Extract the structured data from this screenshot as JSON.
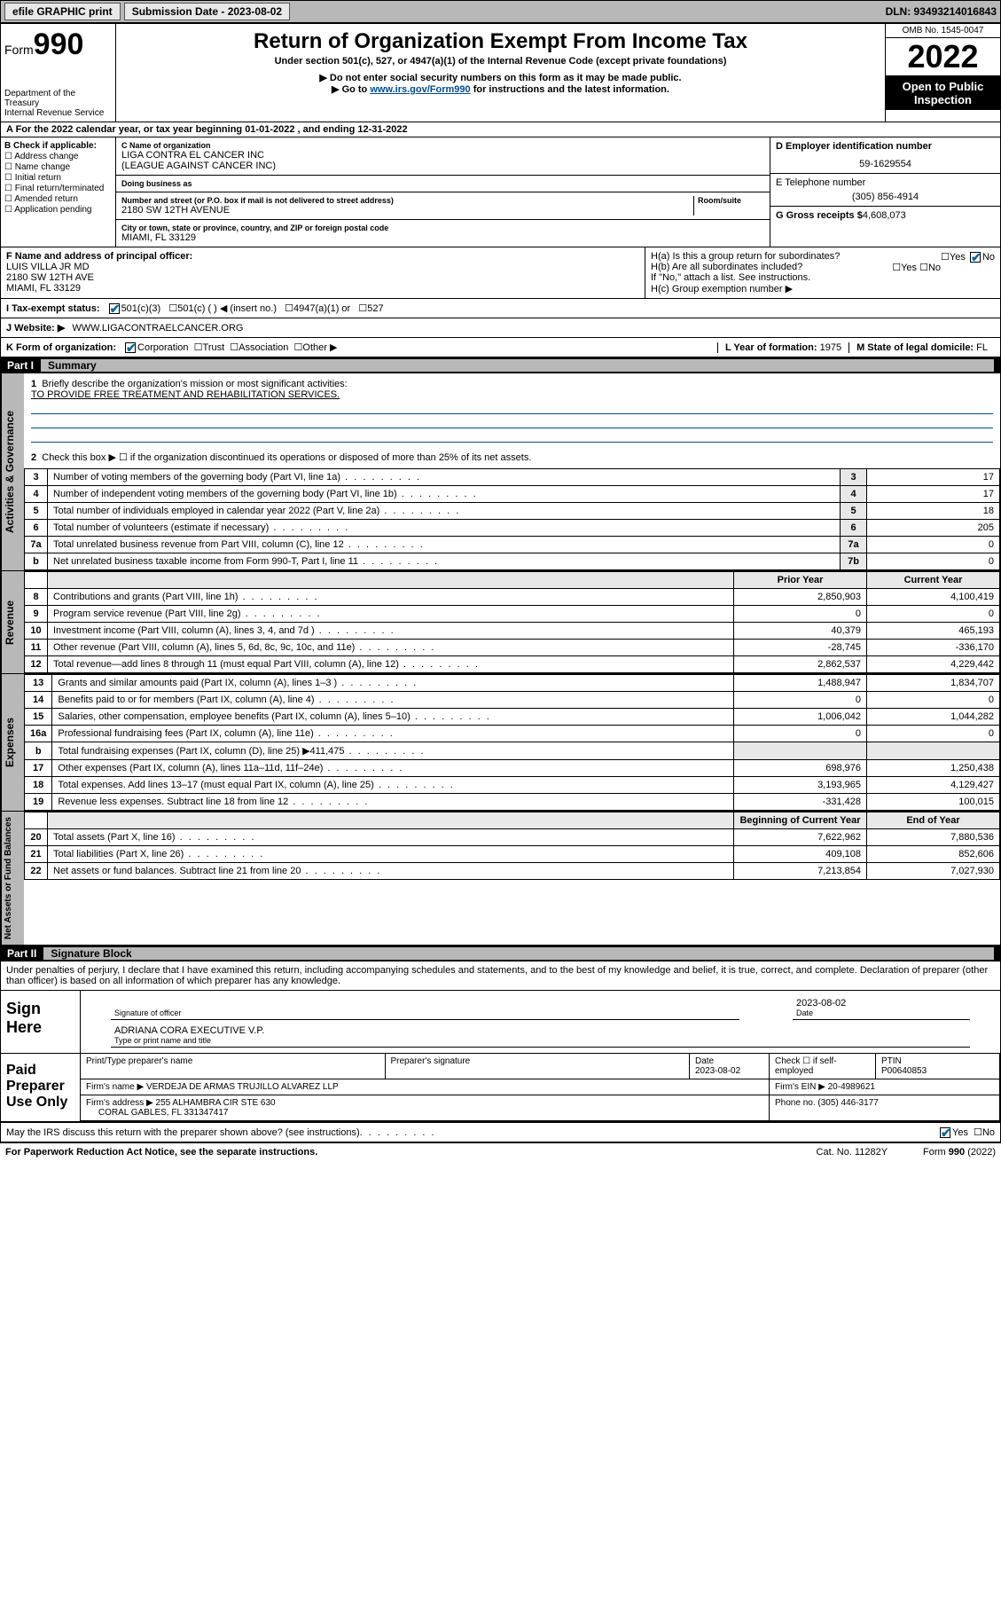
{
  "topbar": {
    "efile": "efile GRAPHIC print",
    "submission_label": "Submission Date - 2023-08-02",
    "dln_label": "DLN: 93493214016843"
  },
  "header": {
    "form_word": "Form",
    "form_num": "990",
    "dept": "Department of the Treasury",
    "irs": "Internal Revenue Service",
    "title": "Return of Organization Exempt From Income Tax",
    "subtitle": "Under section 501(c), 527, or 4947(a)(1) of the Internal Revenue Code (except private foundations)",
    "note1": "▶ Do not enter social security numbers on this form as it may be made public.",
    "note2_pre": "▶ Go to ",
    "note2_link": "www.irs.gov/Form990",
    "note2_post": " for instructions and the latest information.",
    "omb": "OMB No. 1545-0047",
    "year": "2022",
    "open": "Open to Public Inspection"
  },
  "rowA": "A For the 2022 calendar year, or tax year beginning 01-01-2022   , and ending 12-31-2022",
  "colB": {
    "title": "B Check if applicable:",
    "opts": [
      "Address change",
      "Name change",
      "Initial return",
      "Final return/terminated",
      "Amended return",
      "Application pending"
    ]
  },
  "colC": {
    "name_label": "C Name of organization",
    "name1": "LIGA CONTRA EL CANCER INC",
    "name2": "(LEAGUE AGAINST CANCER INC)",
    "dba_label": "Doing business as",
    "addr_label": "Number and street (or P.O. box if mail is not delivered to street address)",
    "room_label": "Room/suite",
    "addr": "2180 SW 12TH AVENUE",
    "city_label": "City or town, state or province, country, and ZIP or foreign postal code",
    "city": "MIAMI, FL  33129"
  },
  "colD": {
    "ein_label": "D Employer identification number",
    "ein": "59-1629554",
    "phone_label": "E Telephone number",
    "phone": "(305) 856-4914",
    "gross_label": "G Gross receipts $",
    "gross": "4,608,073"
  },
  "rowF": {
    "label": "F Name and address of principal officer:",
    "name": "LUIS VILLA JR MD",
    "addr1": "2180 SW 12TH AVE",
    "addr2": "MIAMI, FL  33129"
  },
  "rowH": {
    "ha": "H(a)  Is this a group return for subordinates?",
    "hb": "H(b)  Are all subordinates included?",
    "hb_note": "If \"No,\" attach a list. See instructions.",
    "hc": "H(c)  Group exemption number ▶",
    "yes": "Yes",
    "no": "No"
  },
  "rowI": {
    "label": "I    Tax-exempt status:",
    "o1": "501(c)(3)",
    "o2": "501(c) (  ) ◀ (insert no.)",
    "o3": "4947(a)(1) or",
    "o4": "527"
  },
  "rowJ": {
    "label": "J    Website: ▶",
    "val": "WWW.LIGACONTRAELCANCER.ORG"
  },
  "rowK": {
    "label": "K Form of organization:",
    "o1": "Corporation",
    "o2": "Trust",
    "o3": "Association",
    "o4": "Other ▶",
    "l_label": "L Year of formation: ",
    "l_val": "1975",
    "m_label": "M State of legal domicile: ",
    "m_val": "FL"
  },
  "part1": {
    "label": "Part I",
    "title": "Summary"
  },
  "governance": {
    "tab": "Activities & Governance",
    "line1_label": "Briefly describe the organization's mission or most significant activities:",
    "line1_val": "TO PROVIDE FREE TREATMENT AND REHABILITATION SERVICES.",
    "line2": "Check this box ▶ ☐  if the organization discontinued its operations or disposed of more than 25% of its net assets.",
    "rows": [
      {
        "n": "3",
        "desc": "Number of voting members of the governing body (Part VI, line 1a)",
        "box": "3",
        "val": "17"
      },
      {
        "n": "4",
        "desc": "Number of independent voting members of the governing body (Part VI, line 1b)",
        "box": "4",
        "val": "17"
      },
      {
        "n": "5",
        "desc": "Total number of individuals employed in calendar year 2022 (Part V, line 2a)",
        "box": "5",
        "val": "18"
      },
      {
        "n": "6",
        "desc": "Total number of volunteers (estimate if necessary)",
        "box": "6",
        "val": "205"
      },
      {
        "n": "7a",
        "desc": "Total unrelated business revenue from Part VIII, column (C), line 12",
        "box": "7a",
        "val": "0"
      },
      {
        "n": "b",
        "desc": "Net unrelated business taxable income from Form 990-T, Part I, line 11",
        "box": "7b",
        "val": "0"
      }
    ]
  },
  "revenue": {
    "tab": "Revenue",
    "hdr_prior": "Prior Year",
    "hdr_curr": "Current Year",
    "rows": [
      {
        "n": "8",
        "desc": "Contributions and grants (Part VIII, line 1h)",
        "p": "2,850,903",
        "c": "4,100,419"
      },
      {
        "n": "9",
        "desc": "Program service revenue (Part VIII, line 2g)",
        "p": "0",
        "c": "0"
      },
      {
        "n": "10",
        "desc": "Investment income (Part VIII, column (A), lines 3, 4, and 7d )",
        "p": "40,379",
        "c": "465,193"
      },
      {
        "n": "11",
        "desc": "Other revenue (Part VIII, column (A), lines 5, 6d, 8c, 9c, 10c, and 11e)",
        "p": "-28,745",
        "c": "-336,170"
      },
      {
        "n": "12",
        "desc": "Total revenue—add lines 8 through 11 (must equal Part VIII, column (A), line 12)",
        "p": "2,862,537",
        "c": "4,229,442"
      }
    ]
  },
  "expenses": {
    "tab": "Expenses",
    "rows": [
      {
        "n": "13",
        "desc": "Grants and similar amounts paid (Part IX, column (A), lines 1–3 )",
        "p": "1,488,947",
        "c": "1,834,707"
      },
      {
        "n": "14",
        "desc": "Benefits paid to or for members (Part IX, column (A), line 4)",
        "p": "0",
        "c": "0"
      },
      {
        "n": "15",
        "desc": "Salaries, other compensation, employee benefits (Part IX, column (A), lines 5–10)",
        "p": "1,006,042",
        "c": "1,044,282"
      },
      {
        "n": "16a",
        "desc": "Professional fundraising fees (Part IX, column (A), line 11e)",
        "p": "0",
        "c": "0"
      },
      {
        "n": "b",
        "desc": "Total fundraising expenses (Part IX, column (D), line 25) ▶411,475",
        "p": "",
        "c": ""
      },
      {
        "n": "17",
        "desc": "Other expenses (Part IX, column (A), lines 11a–11d, 11f–24e)",
        "p": "698,976",
        "c": "1,250,438"
      },
      {
        "n": "18",
        "desc": "Total expenses. Add lines 13–17 (must equal Part IX, column (A), line 25)",
        "p": "3,193,965",
        "c": "4,129,427"
      },
      {
        "n": "19",
        "desc": "Revenue less expenses. Subtract line 18 from line 12",
        "p": "-331,428",
        "c": "100,015"
      }
    ]
  },
  "netassets": {
    "tab": "Net Assets or Fund Balances",
    "hdr_begin": "Beginning of Current Year",
    "hdr_end": "End of Year",
    "rows": [
      {
        "n": "20",
        "desc": "Total assets (Part X, line 16)",
        "p": "7,622,962",
        "c": "7,880,536"
      },
      {
        "n": "21",
        "desc": "Total liabilities (Part X, line 26)",
        "p": "409,108",
        "c": "852,606"
      },
      {
        "n": "22",
        "desc": "Net assets or fund balances. Subtract line 21 from line 20",
        "p": "7,213,854",
        "c": "7,027,930"
      }
    ]
  },
  "part2": {
    "label": "Part II",
    "title": "Signature Block"
  },
  "sig": {
    "penalties": "Under penalties of perjury, I declare that I have examined this return, including accompanying schedules and statements, and to the best of my knowledge and belief, it is true, correct, and complete. Declaration of preparer (other than officer) is based on all information of which preparer has any knowledge.",
    "sign_here": "Sign Here",
    "sig_officer": "Signature of officer",
    "date": "Date",
    "date_val": "2023-08-02",
    "typed": "ADRIANA CORA  EXECUTIVE V.P.",
    "typed_label": "Type or print name and title",
    "paid": "Paid Preparer Use Only",
    "prep_name_label": "Print/Type preparer's name",
    "prep_sig_label": "Preparer's signature",
    "prep_date_label": "Date",
    "prep_date": "2023-08-02",
    "check_label": "Check ☐ if self-employed",
    "ptin_label": "PTIN",
    "ptin": "P00640853",
    "firm_name_label": "Firm's name      ▶",
    "firm_name": "VERDEJA DE ARMAS TRUJILLO ALVAREZ LLP",
    "firm_ein_label": "Firm's EIN ▶",
    "firm_ein": "20-4989621",
    "firm_addr_label": "Firm's address ▶",
    "firm_addr1": "255 ALHAMBRA CIR STE 630",
    "firm_addr2": "CORAL GABLES, FL  331347417",
    "firm_phone_label": "Phone no.",
    "firm_phone": "(305) 446-3177",
    "may_irs": "May the IRS discuss this return with the preparer shown above? (see instructions)"
  },
  "footer": {
    "pra": "For Paperwork Reduction Act Notice, see the separate instructions.",
    "cat": "Cat. No. 11282Y",
    "form": "Form 990 (2022)"
  }
}
